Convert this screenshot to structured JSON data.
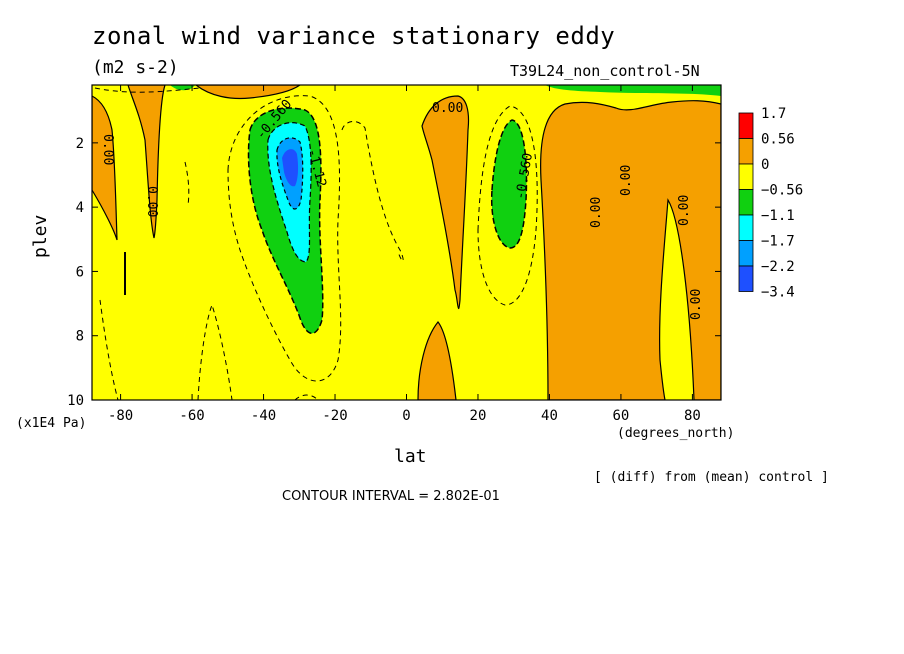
{
  "chart_data": {
    "type": "contour",
    "title": "zonal wind variance stationary eddy",
    "units": "(m2 s-2)",
    "run_label": "T39L24_non_control-5N",
    "xlabel": "lat",
    "x_unit": "(degrees_north)",
    "ylabel": "plev",
    "y_unit": "(x1E4 Pa)",
    "subtitle": "[ (diff) from (mean) control ]",
    "contour_interval": "CONTOUR INTERVAL = 2.802E-01",
    "xlim": [
      -88,
      88
    ],
    "ylim": [
      10,
      0.2
    ],
    "x_ticks": [
      -80,
      -60,
      -40,
      -20,
      0,
      20,
      40,
      60,
      80
    ],
    "y_ticks": [
      2,
      4,
      6,
      8,
      10
    ],
    "colorbar": {
      "labels": [
        "1.7",
        "0.56",
        "0",
        "−0.56",
        "−1.1",
        "−1.7",
        "−2.2",
        "−3.4"
      ],
      "colors": [
        "#ff0000",
        "#f5a000",
        "#ffff00",
        "#10d010",
        "#00ffff",
        "#00a0ff",
        "#1e50ff"
      ]
    },
    "contour_labels": [
      "0.00",
      "0.00",
      "0.00",
      "0.00",
      "0.00",
      "0.00",
      "0.00",
      "-0.560",
      "-1.12",
      "-0.560"
    ],
    "features": [
      {
        "name": "negative core",
        "lat": -32,
        "plev": 2.5,
        "min_value": -2.2
      },
      {
        "name": "negative core",
        "lat": 28,
        "plev": 2.8,
        "min_value": -0.84
      },
      {
        "name": "positive band",
        "lat": 55,
        "plev": 6,
        "max_value": 0.56
      },
      {
        "name": "positive band",
        "lat": 10,
        "plev": 9,
        "max_value": 0.56
      }
    ]
  }
}
